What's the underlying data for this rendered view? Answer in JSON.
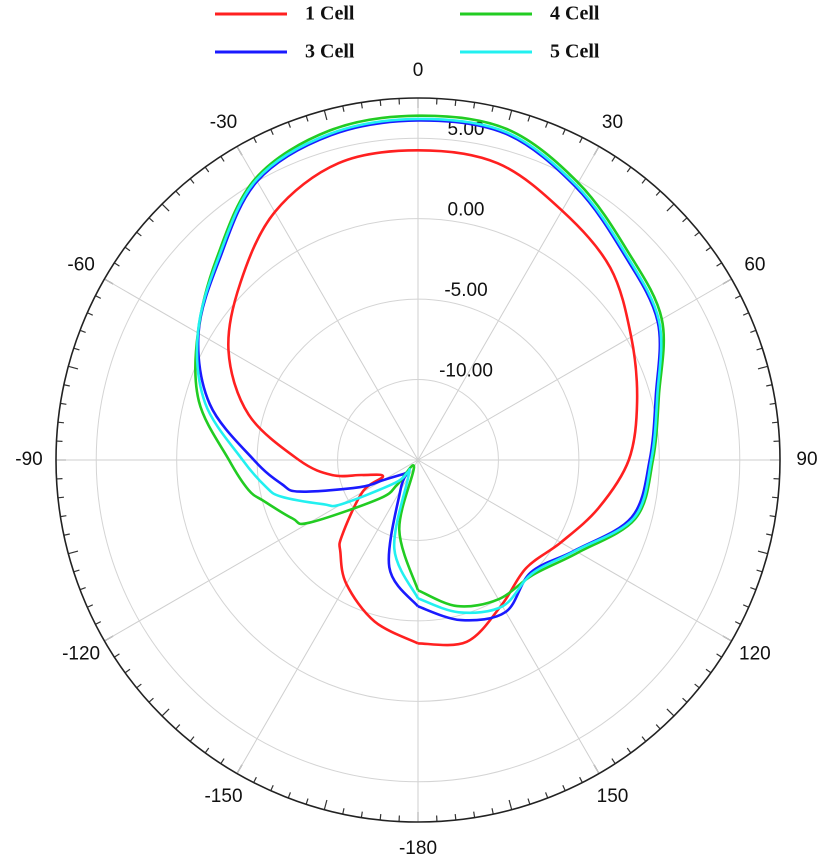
{
  "chart_data": {
    "type": "polar",
    "theta": [
      -180,
      -165,
      -150,
      -140,
      -135,
      -120,
      -115,
      -105,
      -100,
      -90,
      -75,
      -60,
      -45,
      -30,
      -15,
      0,
      15,
      30,
      45,
      60,
      75,
      90,
      105,
      120,
      135,
      150,
      165,
      180
    ],
    "series": [
      {
        "name": "1 Cell",
        "color": "#ff2020",
        "values": [
          -3.6,
          -4.6,
          -6.1,
          -7.5,
          -8.3,
          -11.0,
          -12.6,
          -11.4,
          -9.6,
          -7.6,
          -4.1,
          -1.4,
          0.6,
          2.8,
          4.1,
          4.25,
          4.1,
          2.9,
          1.9,
          0.3,
          -0.9,
          -1.9,
          -3.4,
          -4.75,
          -5.5,
          -4.6,
          -3.3,
          -3.6
        ]
      },
      {
        "name": "3 Cell",
        "color": "#1a1aff",
        "values": [
          -5.9,
          -8.1,
          -12.8,
          -14.0,
          -13.8,
          -12.5,
          -11.0,
          -7.4,
          -6.4,
          -4.8,
          -1.6,
          0.75,
          2.5,
          5.0,
          5.9,
          6.1,
          6.0,
          4.6,
          3.1,
          2.2,
          0.3,
          -0.6,
          -1.25,
          -3.75,
          -5.1,
          -4.1,
          -4.7,
          -5.9
        ]
      },
      {
        "name": "4 Cell",
        "color": "#22cc22",
        "values": [
          -6.9,
          -10.5,
          -14.5,
          -13.0,
          -11.6,
          -7.2,
          -6.4,
          -5.1,
          -4.3,
          -3.25,
          -0.9,
          0.8,
          2.7,
          5.2,
          6.2,
          6.4,
          6.3,
          4.9,
          3.4,
          2.5,
          0.5,
          -0.4,
          -1.0,
          -3.5,
          -4.9,
          -5.0,
          -5.6,
          -6.9
        ]
      },
      {
        "name": "5 Cell",
        "color": "#22f0f0",
        "values": [
          -6.4,
          -9.3,
          -13.8,
          -14.0,
          -13.0,
          -9.5,
          -8.5,
          -6.2,
          -5.4,
          -4.1,
          -1.3,
          0.8,
          2.6,
          5.1,
          6.0,
          6.2,
          6.1,
          4.7,
          3.2,
          2.3,
          0.4,
          -0.5,
          -1.1,
          -3.7,
          -5.0,
          -4.5,
          -5.2,
          -6.4
        ]
      }
    ],
    "rlim": [
      -15,
      7.5
    ],
    "rticks": [
      {
        "value": -10,
        "label": "-10.00"
      },
      {
        "value": -5,
        "label": "-5.00"
      },
      {
        "value": 0,
        "label": "0.00"
      },
      {
        "value": 5,
        "label": "5.00"
      }
    ],
    "thetaticks": [
      0,
      30,
      60,
      90,
      120,
      150,
      -180,
      -150,
      -120,
      -90,
      -60,
      -30
    ],
    "direction": "clockwise",
    "zero": "top",
    "grid": true
  }
}
